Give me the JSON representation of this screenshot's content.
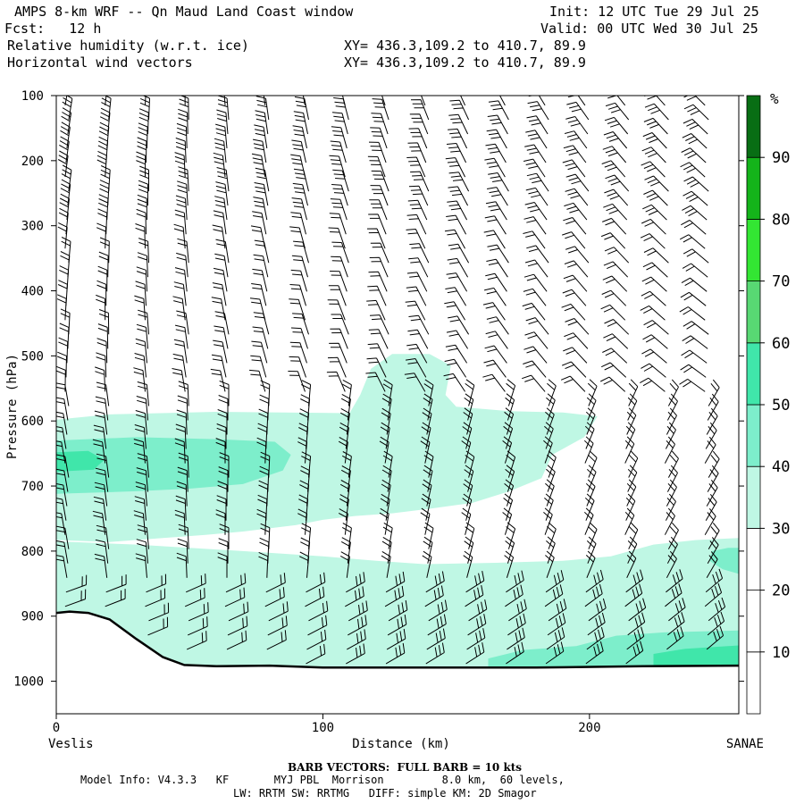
{
  "header": {
    "title": "AMPS 8-km WRF -- Qn Maud Land Coast window",
    "fcst": "Fcst:   12 h",
    "field1": "Relative humidity (w.r.t. ice)",
    "field2": "Horizontal wind vectors",
    "init": "Init: 12 UTC Tue 29 Jul 25",
    "valid": "Valid: 00 UTC Wed 30 Jul 25",
    "xy1": "XY= 436.3,109.2 to 410.7, 89.9",
    "xy2": "XY= 436.3,109.2 to 410.7, 89.9"
  },
  "chart_data": {
    "type": "heatmap",
    "ylabel": "Pressure (hPa)",
    "xlabel": "Distance (km)",
    "x_start_label": "Veslis",
    "x_end_label": "SANAE",
    "xlim": [
      0,
      256
    ],
    "ylim": [
      1050,
      100
    ],
    "y_scale": "linear pressure (inverted)",
    "xticks": [
      0,
      100,
      200
    ],
    "yticks": [
      100,
      200,
      300,
      400,
      500,
      600,
      700,
      800,
      900,
      1000
    ],
    "colorbar": {
      "unit": "%",
      "levels": [
        10,
        20,
        30,
        40,
        50,
        60,
        70,
        80,
        90
      ],
      "colors": [
        "#ffffff",
        "#ffffff",
        "#ffffff",
        "#bff7e4",
        "#7deecb",
        "#40e6aa",
        "#58d873",
        "#33e633",
        "#14b41a",
        "#086e14"
      ]
    },
    "surface_pressure": [
      [
        0,
        895
      ],
      [
        5,
        893
      ],
      [
        12,
        895
      ],
      [
        20,
        905
      ],
      [
        30,
        935
      ],
      [
        40,
        963
      ],
      [
        48,
        975
      ],
      [
        60,
        977
      ],
      [
        80,
        976
      ],
      [
        100,
        979
      ],
      [
        140,
        979
      ],
      [
        180,
        979
      ],
      [
        220,
        977
      ],
      [
        256,
        976
      ]
    ],
    "rh_regions": [
      {
        "rh_min": 30,
        "rh_max": 40,
        "description": "moist layer 600-780 hPa from 0 to ~110 km; tongue up to 500 hPa near 115-145 km; layer 790-850 hPa 0-120 km; low-level band 800-960 hPa 130-256 km"
      },
      {
        "rh_min": 40,
        "rh_max": 50,
        "description": "640-720 hPa, 0-90 km; near surface 900-975 hPa, 175-256 km"
      },
      {
        "rh_min": 50,
        "rh_max": 60,
        "description": "660-700 hPa core near 0-20 km; 930-975 hPa near 230-256 km"
      }
    ],
    "wind_barbs": "full barb = 10 kts; northerly/westerly flow aloft, easterly near surface"
  },
  "footer": {
    "barb_note": "BARB VECTORS:  FULL BARB = 10 kts",
    "model_info": "Model Info: V4.3.3   KF       MYJ PBL  Morrison         8.0 km,  60 levels,",
    "model_info2": "LW: RRTM SW: RRTMG   DIFF: simple KM: 2D Smagor"
  }
}
